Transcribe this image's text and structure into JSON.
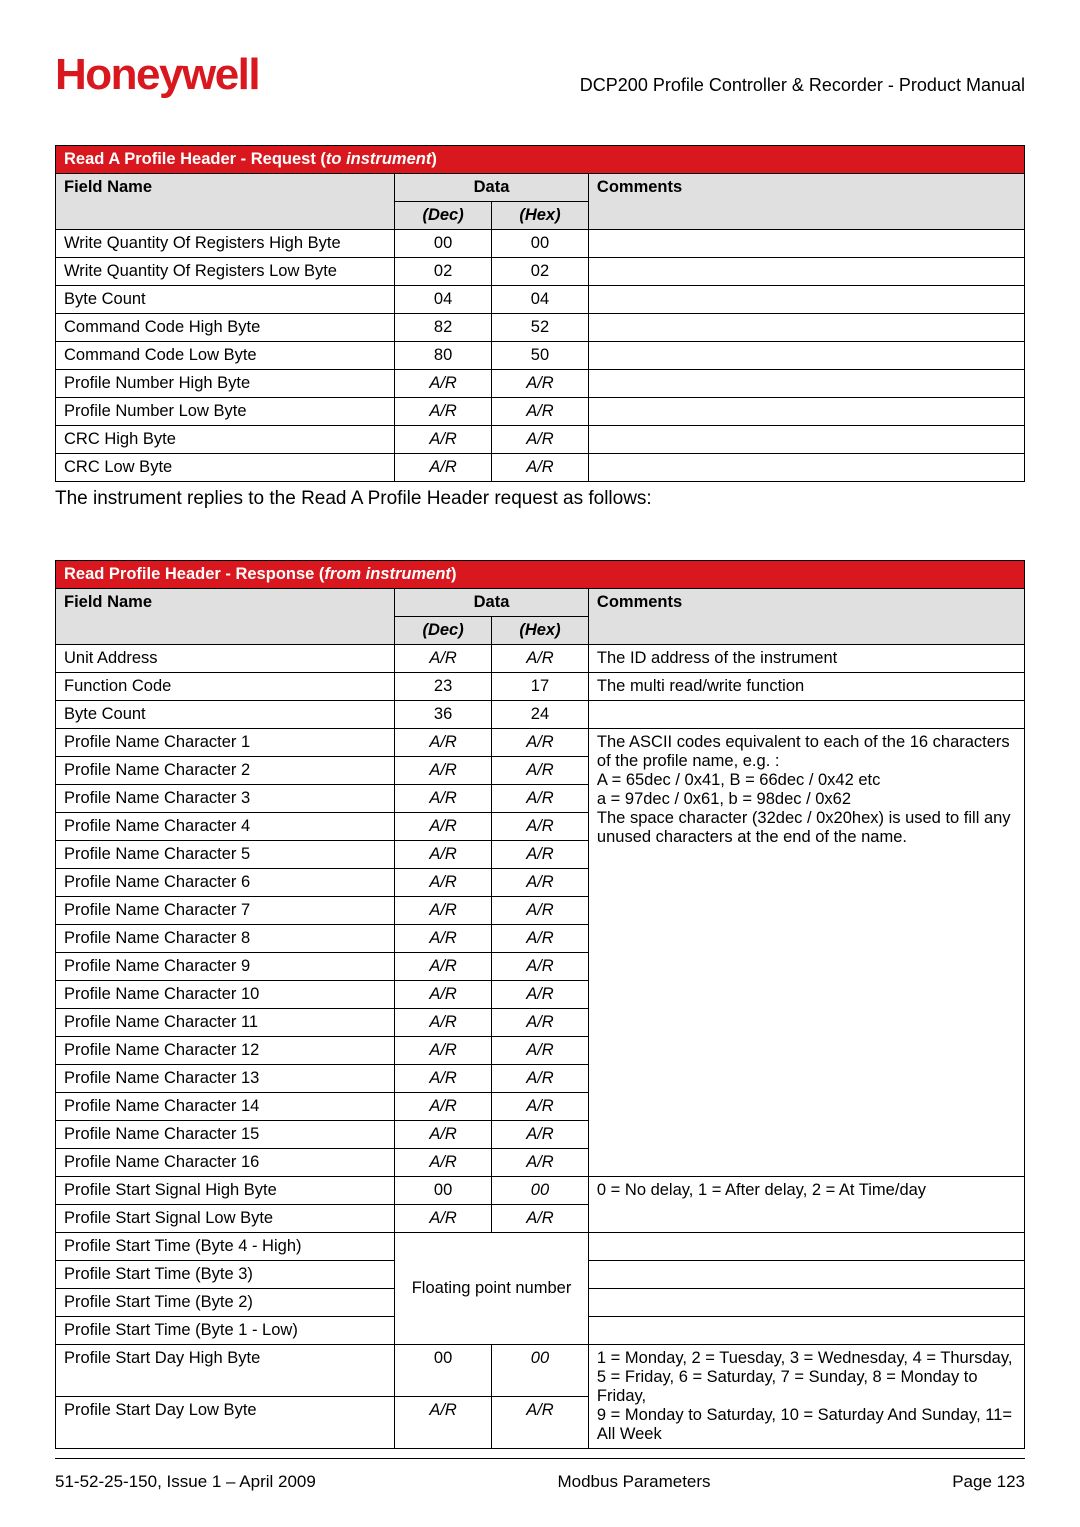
{
  "header": {
    "logo_text": "Honeywell",
    "doc_title": "DCP200 Profile Controller & Recorder - Product Manual"
  },
  "table1": {
    "title_pre": "Read A Profile Header - Request (",
    "title_ital": "to instrument",
    "title_post": ")",
    "h_field": "Field Name",
    "h_data": "Data",
    "h_comments": "Comments",
    "h_dec": "(Dec)",
    "h_hex": "(Hex)",
    "rows": [
      {
        "name": "Write Quantity Of Registers High Byte",
        "dec": "00",
        "hex": "00",
        "comment": "",
        "ital": false
      },
      {
        "name": "Write Quantity Of Registers Low Byte",
        "dec": "02",
        "hex": "02",
        "comment": "",
        "ital": false
      },
      {
        "name": "Byte Count",
        "dec": "04",
        "hex": "04",
        "comment": "",
        "ital": false
      },
      {
        "name": "Command Code High Byte",
        "dec": "82",
        "hex": "52",
        "comment": "",
        "ital": false
      },
      {
        "name": "Command Code Low Byte",
        "dec": "80",
        "hex": "50",
        "comment": "",
        "ital": false
      },
      {
        "name": "Profile Number High Byte",
        "dec": "A/R",
        "hex": "A/R",
        "comment": "",
        "ital": true
      },
      {
        "name": "Profile Number Low Byte",
        "dec": "A/R",
        "hex": "A/R",
        "comment": "",
        "ital": true
      },
      {
        "name": "CRC High Byte",
        "dec": "A/R",
        "hex": "A/R",
        "comment": "",
        "ital": true
      },
      {
        "name": "CRC Low Byte",
        "dec": "A/R",
        "hex": "A/R",
        "comment": "",
        "ital": true
      }
    ]
  },
  "paragraph": "The instrument replies to the Read A Profile Header request as follows:",
  "table2": {
    "title_pre": "Read Profile Header - Response (",
    "title_ital": "from instrument",
    "title_post": ")",
    "h_field": "Field Name",
    "h_data": "Data",
    "h_comments": "Comments",
    "h_dec": "(Dec)",
    "h_hex": "(Hex)",
    "row_unit": {
      "name": "Unit Address",
      "dec": "A/R",
      "hex": "A/R",
      "comment": "The ID address of the instrument"
    },
    "row_func": {
      "name": "Function Code",
      "dec": "23",
      "hex": "17",
      "comment": "The multi read/write function"
    },
    "row_bytec": {
      "name": "Byte Count",
      "dec": "36",
      "hex": "24",
      "comment": ""
    },
    "char_rows": [
      "Profile Name Character 1",
      "Profile Name Character 2",
      "Profile Name Character 3",
      "Profile Name Character 4",
      "Profile Name Character 5",
      "Profile Name Character 6",
      "Profile Name Character 7",
      "Profile Name Character 8",
      "Profile Name Character 9",
      "Profile Name Character 10",
      "Profile Name Character 11",
      "Profile Name Character 12",
      "Profile Name Character 13",
      "Profile Name Character 14",
      "Profile Name Character 15",
      "Profile Name Character 16"
    ],
    "char_ar": "A/R",
    "char_comment": "The ASCII codes equivalent to each of the 16 characters of the profile name, e.g. :\nA = 65dec / 0x41, B = 66dec / 0x42 etc\na = 97dec / 0x61, b = 98dec / 0x62\nThe space character (32dec / 0x20hex) is used to fill any unused characters at the end of the name.",
    "start_sig_h": {
      "name": "Profile Start Signal High Byte",
      "dec": "00",
      "hex": "00"
    },
    "start_sig_l": {
      "name": "Profile Start Signal Low Byte",
      "dec": "A/R",
      "hex": "A/R"
    },
    "start_sig_comment": "0 = No delay, 1 = After delay, 2 = At Time/day",
    "start_time_rows": [
      "Profile Start Time (Byte 4 - High)",
      "Profile Start Time (Byte 3)",
      "Profile Start Time (Byte 2)",
      "Profile Start Time (Byte 1 - Low)"
    ],
    "float_label": "Floating point number",
    "start_day_h": {
      "name": "Profile Start Day High Byte",
      "dec": "00",
      "hex": "00"
    },
    "start_day_l": {
      "name": "Profile Start Day Low Byte",
      "dec": "A/R",
      "hex": "A/R"
    },
    "start_day_comment": "1 = Monday, 2 = Tuesday, 3 = Wednesday, 4 = Thursday, 5 = Friday, 6 = Saturday, 7 = Sunday, 8 = Monday to Friday,\n9 = Monday to Saturday, 10 = Saturday And Sunday, 11= All Week"
  },
  "footer": {
    "left": "51-52-25-150, Issue 1 – April 2009",
    "center": "Modbus Parameters",
    "right": "Page 123"
  }
}
